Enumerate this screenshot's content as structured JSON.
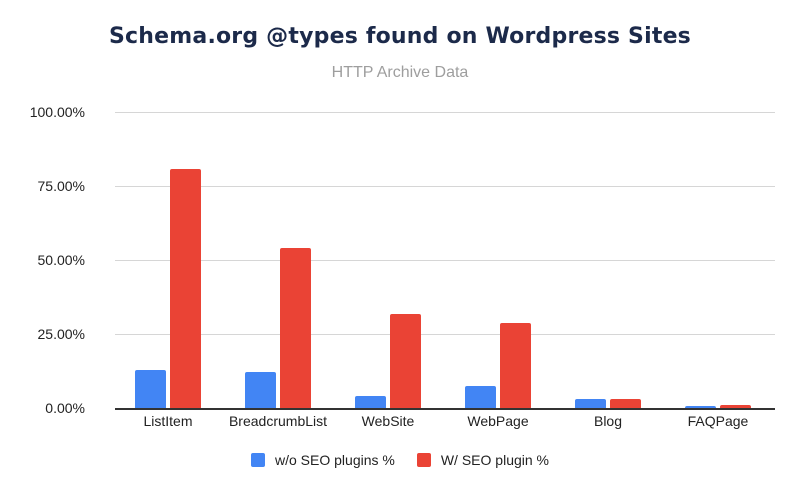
{
  "chart_data": {
    "type": "bar",
    "title": "Schema.org @types found on Wordpress Sites",
    "subtitle": "HTTP Archive Data",
    "xlabel": "",
    "ylabel": "",
    "ylim": [
      0,
      100
    ],
    "yticks": [
      "0.00%",
      "25.00%",
      "50.00%",
      "75.00%",
      "100.00%"
    ],
    "grid": true,
    "legend_position": "bottom",
    "categories": [
      "ListItem",
      "BreadcrumbList",
      "WebSite",
      "WebPage",
      "Blog",
      "FAQPage"
    ],
    "series": [
      {
        "name": "w/o SEO plugins %",
        "color": "#4285f4",
        "values": [
          12.8,
          12.3,
          4.2,
          7.4,
          3.2,
          0.6
        ]
      },
      {
        "name": "W/ SEO plugin %",
        "color": "#ea4335",
        "values": [
          80.8,
          53.9,
          31.8,
          28.8,
          3.2,
          1.0
        ]
      }
    ]
  }
}
